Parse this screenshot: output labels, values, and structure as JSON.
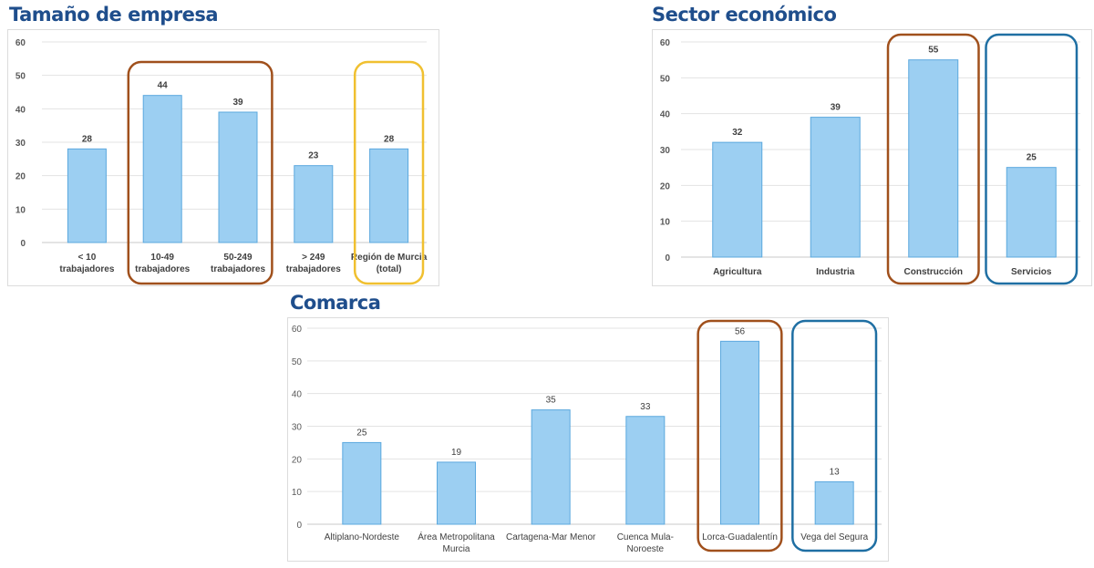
{
  "colors": {
    "title": "#1f4e8c",
    "bar_fill": "#9ccff2",
    "bar_stroke": "#5ba8de",
    "highlight_brown": "#a0501c",
    "highlight_yellow": "#f0c030",
    "highlight_blue": "#1f6fa3"
  },
  "chart_data": [
    {
      "type": "bar",
      "title": "Tamaño de empresa",
      "categories": [
        [
          "< 10",
          "trabajadores"
        ],
        [
          "10-49",
          "trabajadores"
        ],
        [
          "50-249",
          "trabajadores"
        ],
        [
          "> 249",
          "trabajadores"
        ],
        [
          "Región de Murcia",
          "(total)"
        ]
      ],
      "values": [
        28,
        44,
        39,
        23,
        28
      ],
      "yticks": [
        0,
        10,
        20,
        30,
        40,
        50,
        60
      ],
      "ylim": [
        0,
        60
      ],
      "xlabel": "",
      "ylabel": "",
      "grid": true,
      "highlights": [
        {
          "color": "brown",
          "categories": [
            1,
            2
          ]
        },
        {
          "color": "yellow",
          "categories": [
            4
          ]
        }
      ]
    },
    {
      "type": "bar",
      "title": "Sector económico",
      "categories": [
        [
          "Agricultura"
        ],
        [
          "Industria"
        ],
        [
          "Construcción"
        ],
        [
          "Servicios"
        ]
      ],
      "values": [
        32,
        39,
        55,
        25
      ],
      "yticks": [
        0,
        10,
        20,
        30,
        40,
        50,
        60
      ],
      "ylim": [
        0,
        60
      ],
      "xlabel": "",
      "ylabel": "",
      "grid": true,
      "highlights": [
        {
          "color": "brown",
          "categories": [
            2
          ]
        },
        {
          "color": "blue",
          "categories": [
            3
          ]
        }
      ]
    },
    {
      "type": "bar",
      "title": "Comarca",
      "categories": [
        [
          "Altiplano-Nordeste"
        ],
        [
          "Área Metropolitana",
          "Murcia"
        ],
        [
          "Cartagena-Mar Menor"
        ],
        [
          "Cuenca Mula-",
          "Noroeste"
        ],
        [
          "Lorca-Guadalentín"
        ],
        [
          "Vega del Segura"
        ]
      ],
      "values": [
        25,
        19,
        35,
        33,
        56,
        13
      ],
      "yticks": [
        0,
        10,
        20,
        30,
        40,
        50,
        60
      ],
      "ylim": [
        0,
        60
      ],
      "xlabel": "",
      "ylabel": "",
      "grid": true,
      "highlights": [
        {
          "color": "brown",
          "categories": [
            4
          ]
        },
        {
          "color": "blue",
          "categories": [
            5
          ]
        }
      ]
    }
  ]
}
